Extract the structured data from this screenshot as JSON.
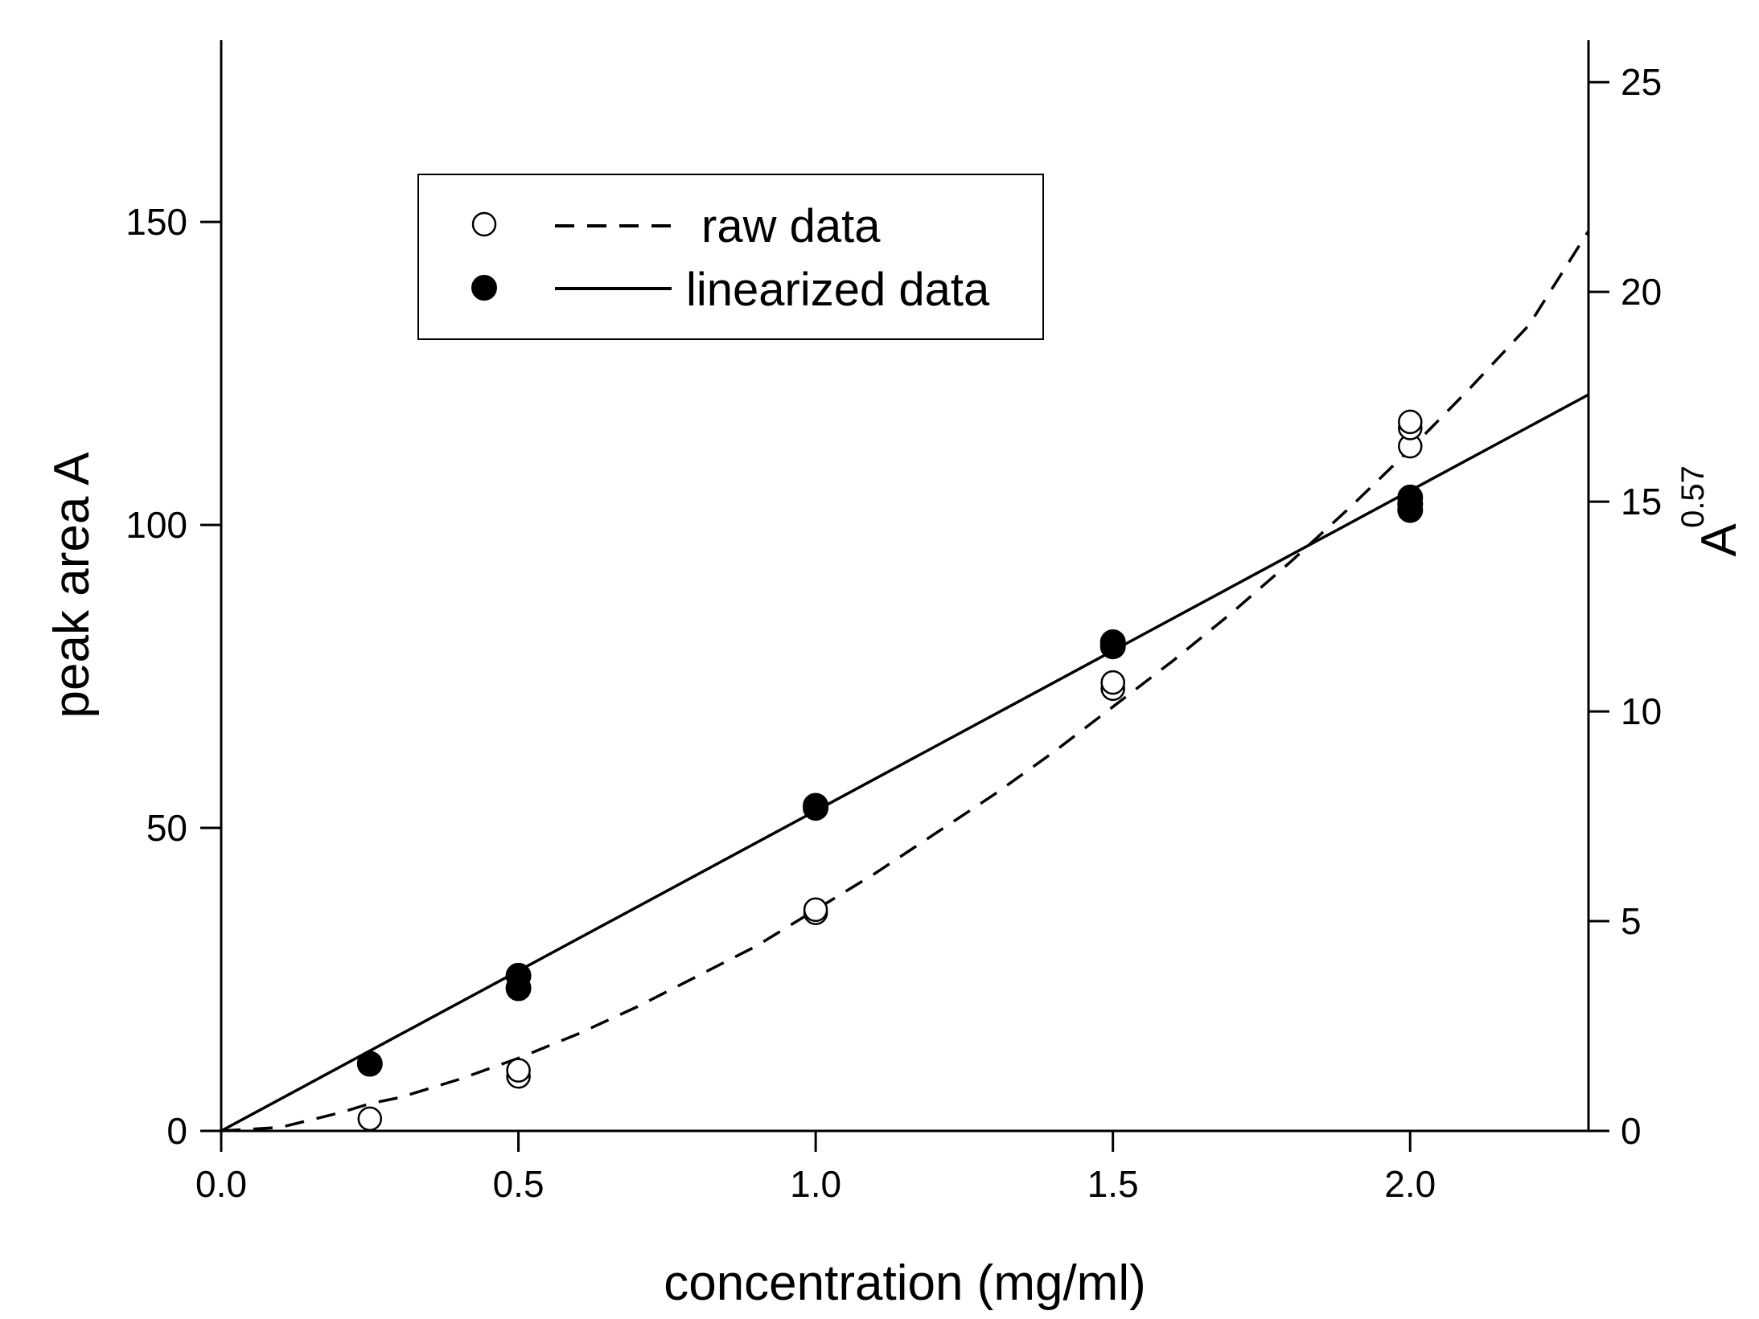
{
  "chart_data": {
    "type": "scatter",
    "title": "",
    "xlabel": "concentration (mg/ml)",
    "ylabel": "peak area A",
    "y2label": {
      "base": "A",
      "exponent": "0.57"
    },
    "xlim": [
      0,
      2.3
    ],
    "ylim": [
      0,
      180
    ],
    "y2lim": [
      0,
      26
    ],
    "x_ticks": [
      "0.0",
      "0.5",
      "1.0",
      "1.5",
      "2.0"
    ],
    "x_tick_values": [
      0,
      0.5,
      1.0,
      1.5,
      2.0
    ],
    "y_ticks": [
      "0",
      "50",
      "100",
      "150"
    ],
    "y_tick_values": [
      0,
      50,
      100,
      150
    ],
    "y2_ticks": [
      "0",
      "5",
      "10",
      "15",
      "20",
      "25"
    ],
    "y2_tick_values": [
      0,
      5,
      10,
      15,
      20,
      25
    ],
    "legend": {
      "position": "top-left",
      "entries": [
        {
          "label": "raw data",
          "marker": "open-circle",
          "line": "dashed"
        },
        {
          "label": "linearized data",
          "marker": "filled-circle",
          "line": "solid"
        }
      ]
    },
    "series": [
      {
        "name": "raw data",
        "axis": "left",
        "marker": "open-circle",
        "points": [
          {
            "x": 0.25,
            "y": 2
          },
          {
            "x": 0.5,
            "y": 9
          },
          {
            "x": 0.5,
            "y": 10
          },
          {
            "x": 1.0,
            "y": 36
          },
          {
            "x": 1.0,
            "y": 36.5
          },
          {
            "x": 1.5,
            "y": 73
          },
          {
            "x": 1.5,
            "y": 74
          },
          {
            "x": 2.0,
            "y": 113
          },
          {
            "x": 2.0,
            "y": 116
          },
          {
            "x": 2.0,
            "y": 117
          }
        ]
      },
      {
        "name": "linearized data",
        "axis": "right",
        "marker": "filled-circle",
        "points": [
          {
            "x": 0.25,
            "y": 1.6
          },
          {
            "x": 0.5,
            "y": 3.4
          },
          {
            "x": 0.5,
            "y": 3.7
          },
          {
            "x": 1.0,
            "y": 7.7
          },
          {
            "x": 1.0,
            "y": 7.75
          },
          {
            "x": 1.5,
            "y": 11.55
          },
          {
            "x": 1.5,
            "y": 11.65
          },
          {
            "x": 2.0,
            "y": 14.8
          },
          {
            "x": 2.0,
            "y": 14.95
          },
          {
            "x": 2.0,
            "y": 15.1
          }
        ]
      }
    ],
    "fits": [
      {
        "name": "raw data fit",
        "style": "dashed",
        "axis": "left",
        "x": [
          0,
          0.1,
          0.2,
          0.25,
          0.3,
          0.4,
          0.5,
          0.6,
          0.7,
          0.8,
          0.9,
          1.0,
          1.1,
          1.2,
          1.3,
          1.4,
          1.5,
          1.6,
          1.7,
          1.8,
          1.9,
          2.0,
          2.1,
          2.2,
          2.3
        ],
        "y": [
          0,
          0.6,
          3.0,
          4.5,
          5.5,
          8.5,
          12.0,
          16.0,
          20.5,
          25.5,
          30.5,
          36.5,
          42.5,
          49.0,
          55.5,
          62.5,
          70.0,
          77.5,
          85.5,
          94.0,
          103.0,
          112.5,
          122.5,
          133.0,
          148.5
        ]
      },
      {
        "name": "linearized fit",
        "style": "solid",
        "axis": "right",
        "x": [
          0,
          2.3
        ],
        "y": [
          0,
          17.55
        ]
      }
    ]
  }
}
